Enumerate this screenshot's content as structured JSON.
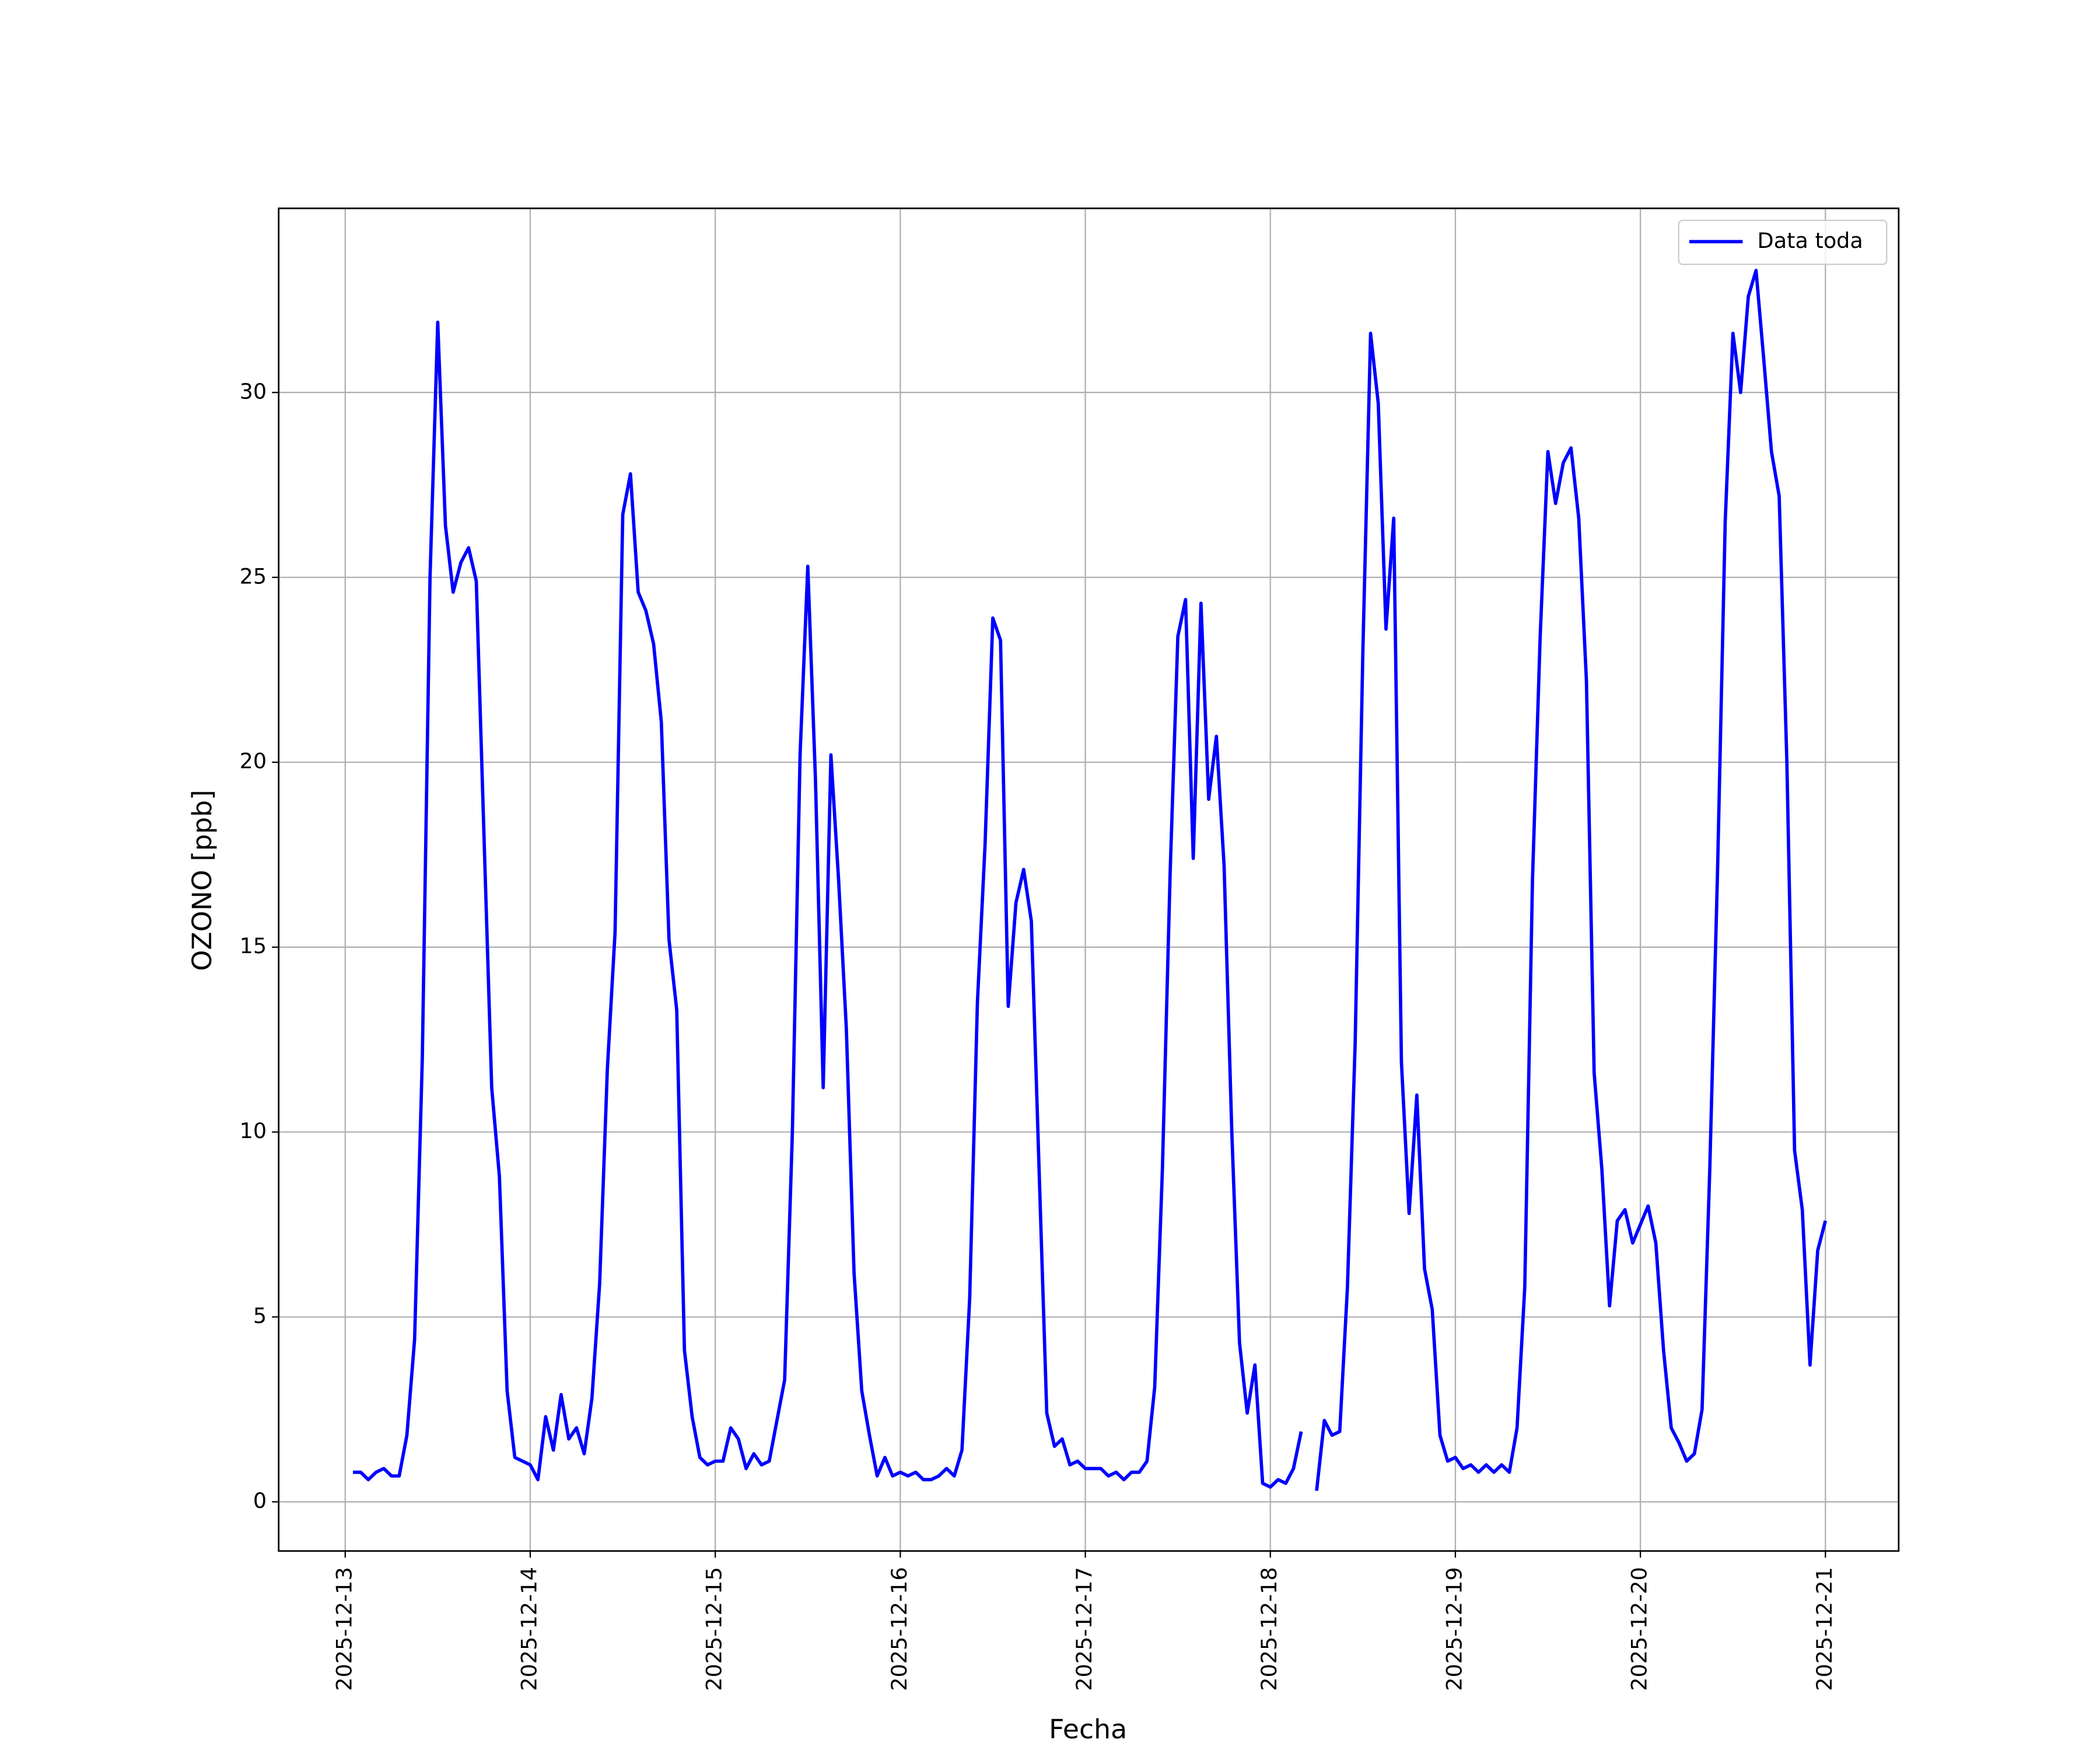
{
  "chart_data": {
    "type": "line",
    "xlabel": "Fecha",
    "ylabel": "OZONO [ppb]",
    "x": [
      "2025-12-13T01:00",
      "2025-12-13T02:00",
      "2025-12-13T03:00",
      "2025-12-13T04:00",
      "2025-12-13T05:00",
      "2025-12-13T06:00",
      "2025-12-13T07:00",
      "2025-12-13T08:00",
      "2025-12-13T09:00",
      "2025-12-13T10:00",
      "2025-12-13T11:00",
      "2025-12-13T12:00",
      "2025-12-13T13:00",
      "2025-12-13T14:00",
      "2025-12-13T15:00",
      "2025-12-13T16:00",
      "2025-12-13T17:00",
      "2025-12-13T18:00",
      "2025-12-13T19:00",
      "2025-12-13T20:00",
      "2025-12-13T21:00",
      "2025-12-13T22:00",
      "2025-12-13T23:00",
      "2025-12-14T00:00",
      "2025-12-14T01:00",
      "2025-12-14T02:00",
      "2025-12-14T03:00",
      "2025-12-14T04:00",
      "2025-12-14T05:00",
      "2025-12-14T06:00",
      "2025-12-14T07:00",
      "2025-12-14T08:00",
      "2025-12-14T09:00",
      "2025-12-14T10:00",
      "2025-12-14T11:00",
      "2025-12-14T12:00",
      "2025-12-14T13:00",
      "2025-12-14T14:00",
      "2025-12-14T15:00",
      "2025-12-14T16:00",
      "2025-12-14T17:00",
      "2025-12-14T18:00",
      "2025-12-14T19:00",
      "2025-12-14T20:00",
      "2025-12-14T21:00",
      "2025-12-14T22:00",
      "2025-12-14T23:00",
      "2025-12-15T00:00",
      "2025-12-15T01:00",
      "2025-12-15T02:00",
      "2025-12-15T03:00",
      "2025-12-15T04:00",
      "2025-12-15T05:00",
      "2025-12-15T06:00",
      "2025-12-15T07:00",
      "2025-12-15T08:00",
      "2025-12-15T09:00",
      "2025-12-15T10:00",
      "2025-12-15T11:00",
      "2025-12-15T12:00",
      "2025-12-15T13:00",
      "2025-12-15T14:00",
      "2025-12-15T15:00",
      "2025-12-15T16:00",
      "2025-12-15T17:00",
      "2025-12-15T18:00",
      "2025-12-15T19:00",
      "2025-12-15T20:00",
      "2025-12-15T21:00",
      "2025-12-15T22:00",
      "2025-12-15T23:00",
      "2025-12-16T00:00",
      "2025-12-16T01:00",
      "2025-12-16T02:00",
      "2025-12-16T03:00",
      "2025-12-16T04:00",
      "2025-12-16T05:00",
      "2025-12-16T06:00",
      "2025-12-16T07:00",
      "2025-12-16T08:00",
      "2025-12-16T09:00",
      "2025-12-16T10:00",
      "2025-12-16T11:00",
      "2025-12-16T12:00",
      "2025-12-16T13:00",
      "2025-12-16T14:00",
      "2025-12-16T15:00",
      "2025-12-16T16:00",
      "2025-12-16T17:00",
      "2025-12-16T18:00",
      "2025-12-16T19:00",
      "2025-12-16T20:00",
      "2025-12-16T21:00",
      "2025-12-16T22:00",
      "2025-12-16T23:00",
      "2025-12-17T00:00",
      "2025-12-17T01:00",
      "2025-12-17T02:00",
      "2025-12-17T03:00",
      "2025-12-17T04:00",
      "2025-12-17T05:00",
      "2025-12-17T06:00",
      "2025-12-17T07:00",
      "2025-12-17T08:00",
      "2025-12-17T09:00",
      "2025-12-17T10:00",
      "2025-12-17T11:00",
      "2025-12-17T12:00",
      "2025-12-17T13:00",
      "2025-12-17T14:00",
      "2025-12-17T15:00",
      "2025-12-17T16:00",
      "2025-12-17T17:00",
      "2025-12-17T18:00",
      "2025-12-17T19:00",
      "2025-12-17T20:00",
      "2025-12-17T21:00",
      "2025-12-17T22:00",
      "2025-12-17T23:00",
      "2025-12-18T00:00",
      "2025-12-18T01:00",
      "2025-12-18T02:00",
      "2025-12-18T03:00",
      "2025-12-18T04:00",
      "2025-12-18T05:00",
      "2025-12-18T06:00",
      "2025-12-18T07:00",
      "2025-12-18T08:00",
      "2025-12-18T09:00",
      "2025-12-18T10:00",
      "2025-12-18T11:00",
      "2025-12-18T12:00",
      "2025-12-18T13:00",
      "2025-12-18T14:00",
      "2025-12-18T15:00",
      "2025-12-18T16:00",
      "2025-12-18T17:00",
      "2025-12-18T18:00",
      "2025-12-18T19:00",
      "2025-12-18T20:00",
      "2025-12-18T21:00",
      "2025-12-18T22:00",
      "2025-12-18T23:00",
      "2025-12-19T00:00",
      "2025-12-19T01:00",
      "2025-12-19T02:00",
      "2025-12-19T03:00",
      "2025-12-19T04:00",
      "2025-12-19T05:00",
      "2025-12-19T06:00",
      "2025-12-19T07:00",
      "2025-12-19T08:00",
      "2025-12-19T09:00",
      "2025-12-19T10:00",
      "2025-12-19T11:00",
      "2025-12-19T12:00",
      "2025-12-19T13:00",
      "2025-12-19T14:00",
      "2025-12-19T15:00",
      "2025-12-19T16:00",
      "2025-12-19T17:00",
      "2025-12-19T18:00",
      "2025-12-19T19:00",
      "2025-12-19T20:00",
      "2025-12-19T21:00",
      "2025-12-19T22:00",
      "2025-12-19T23:00",
      "2025-12-20T00:00",
      "2025-12-20T01:00",
      "2025-12-20T02:00",
      "2025-12-20T03:00",
      "2025-12-20T04:00",
      "2025-12-20T05:00",
      "2025-12-20T06:00",
      "2025-12-20T07:00",
      "2025-12-20T08:00",
      "2025-12-20T09:00",
      "2025-12-20T10:00",
      "2025-12-20T11:00",
      "2025-12-20T12:00",
      "2025-12-20T13:00",
      "2025-12-20T14:00",
      "2025-12-20T15:00",
      "2025-12-20T16:00",
      "2025-12-20T17:00",
      "2025-12-20T18:00",
      "2025-12-20T19:00",
      "2025-12-20T20:00",
      "2025-12-20T21:00",
      "2025-12-20T22:00",
      "2025-12-20T23:00",
      "2025-12-21T00:00"
    ],
    "series": [
      {
        "name": "Data toda",
        "color": "#0000ff",
        "values": [
          0.8,
          0.8,
          0.6,
          0.8,
          0.9,
          0.7,
          0.7,
          1.8,
          4.4,
          12,
          25,
          31.9,
          26.4,
          24.6,
          25.4,
          25.8,
          24.9,
          18,
          11.2,
          8.8,
          3.0,
          1.2,
          1.1,
          1.0,
          0.6,
          2.3,
          1.4,
          2.9,
          1.7,
          2.0,
          1.3,
          2.8,
          5.9,
          11.7,
          15.4,
          26.7,
          27.8,
          24.6,
          24.1,
          23.2,
          21.1,
          15.2,
          13.3,
          4.1,
          2.3,
          1.2,
          1.0,
          1.1,
          1.1,
          2.0,
          1.7,
          0.9,
          1.3,
          1.0,
          1.1,
          2.2,
          3.3,
          10,
          20.2,
          25.3,
          19.5,
          11.2,
          20.2,
          16.8,
          12.8,
          6.2,
          3.0,
          1.8,
          0.7,
          1.2,
          0.7,
          0.8,
          0.7,
          0.8,
          0.6,
          0.6,
          0.7,
          0.9,
          0.7,
          1.4,
          5.5,
          13.5,
          17.8,
          23.9,
          23.3,
          13.4,
          16.2,
          17.1,
          15.7,
          9.0,
          2.4,
          1.5,
          1.7,
          1.0,
          1.1,
          0.9,
          0.9,
          0.9,
          0.7,
          0.8,
          0.6,
          0.8,
          0.8,
          1.1,
          3.1,
          9,
          17,
          23.4,
          24.4,
          17.4,
          24.3,
          19.0,
          20.7,
          17.2,
          10,
          4.3,
          2.4,
          3.7,
          0.5,
          0.4,
          0.6,
          0.5,
          0.9,
          1.9,
          null,
          0.3,
          2.2,
          1.8,
          1.9,
          5.8,
          12.4,
          23,
          31.6,
          29.7,
          23.6,
          26.6,
          11.9,
          7.8,
          11.0,
          6.3,
          5.2,
          1.8,
          1.1,
          1.2,
          0.9,
          1.0,
          0.8,
          1.0,
          0.8,
          1.0,
          0.8,
          2.0,
          5.8,
          16.8,
          23.4,
          28.4,
          27.0,
          28.1,
          28.5,
          26.6,
          22.2,
          11.6,
          9.0,
          5.3,
          7.6,
          7.9,
          7.0,
          7.5,
          8.0,
          7.0,
          4.1,
          2.0,
          1.6,
          1.1,
          1.3,
          2.5,
          9,
          17,
          26.5,
          31.6,
          30.0,
          32.6,
          33.3,
          30.9,
          28.4,
          27.2,
          20,
          9.5,
          7.9,
          3.7,
          6.8,
          7.6
        ]
      }
    ],
    "xlim": [
      "2025-12-12T15:22",
      "2025-12-21T09:30"
    ],
    "xticks": [
      "2025-12-13",
      "2025-12-14",
      "2025-12-15",
      "2025-12-16",
      "2025-12-17",
      "2025-12-18",
      "2025-12-19",
      "2025-12-20",
      "2025-12-21"
    ],
    "ylim": [
      -1.33,
      34.98
    ],
    "yticks": [
      0,
      5,
      10,
      15,
      20,
      25,
      30
    ],
    "grid": true,
    "legend": "upper right"
  }
}
